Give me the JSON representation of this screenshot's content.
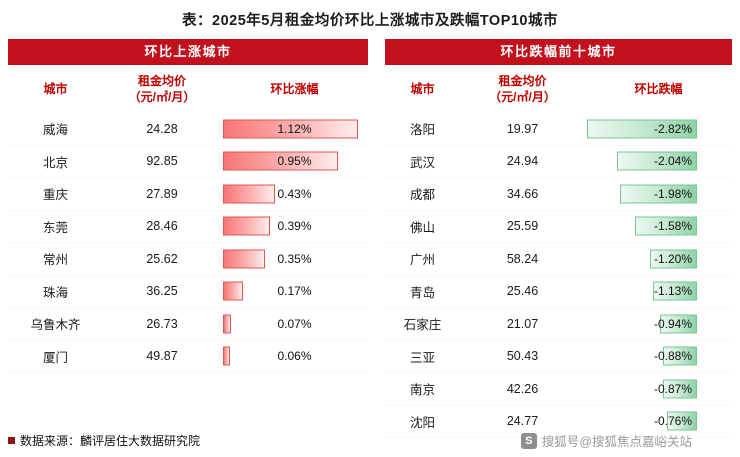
{
  "page": {
    "title": "表：2025年5月租金均价环比上涨城市及跌幅TOP10城市",
    "source_note": "数据来源：麟评居住大数据研究院",
    "watermark_text": "搜狐号@搜狐焦点嘉峪关站",
    "sohu_icon_glyph": "S"
  },
  "colors": {
    "band_red": "#C2101C",
    "header_text_red": "#C00000",
    "rise_bar_red": "#F87575",
    "rise_bar_border": "#E25555",
    "fall_bar_green": "#8FD2A6",
    "fall_bar_border": "#79C795"
  },
  "left_table": {
    "band_title": "环比上涨城市",
    "col_city": "城市",
    "col_price_line1": "租金均价",
    "col_price_line2": "（元/㎡/月）",
    "col_change": "环比涨幅"
  },
  "right_table": {
    "band_title": "环比跌幅前十城市",
    "col_city": "城市",
    "col_price_line1": "租金均价",
    "col_price_line2": "（元/㎡/月）",
    "col_change": "环比跌幅"
  },
  "chart_data": [
    {
      "type": "table",
      "title": "环比上涨城市",
      "columns": [
        "城市",
        "租金均价（元/㎡/月）",
        "环比涨幅"
      ],
      "bar_style": "red-gradient-left-anchored",
      "rows": [
        {
          "city": "威海",
          "price": 24.28,
          "change_label": "1.12%",
          "change_pct": 1.12
        },
        {
          "city": "北京",
          "price": 92.85,
          "change_label": "0.95%",
          "change_pct": 0.95
        },
        {
          "city": "重庆",
          "price": 27.89,
          "change_label": "0.43%",
          "change_pct": 0.43
        },
        {
          "city": "东莞",
          "price": 28.46,
          "change_label": "0.39%",
          "change_pct": 0.39
        },
        {
          "city": "常州",
          "price": 25.62,
          "change_label": "0.35%",
          "change_pct": 0.35
        },
        {
          "city": "珠海",
          "price": 36.25,
          "change_label": "0.17%",
          "change_pct": 0.17
        },
        {
          "city": "乌鲁木齐",
          "price": 26.73,
          "change_label": "0.07%",
          "change_pct": 0.07
        },
        {
          "city": "厦门",
          "price": 49.87,
          "change_label": "0.06%",
          "change_pct": 0.06
        }
      ]
    },
    {
      "type": "table",
      "title": "环比跌幅前十城市",
      "columns": [
        "城市",
        "租金均价（元/㎡/月）",
        "环比跌幅"
      ],
      "bar_style": "green-gradient-right-anchored",
      "rows": [
        {
          "city": "洛阳",
          "price": 19.97,
          "change_label": "-2.82%",
          "change_pct": -2.82
        },
        {
          "city": "武汉",
          "price": 24.94,
          "change_label": "-2.04%",
          "change_pct": -2.04
        },
        {
          "city": "成都",
          "price": 34.66,
          "change_label": "-1.98%",
          "change_pct": -1.98
        },
        {
          "city": "佛山",
          "price": 25.59,
          "change_label": "-1.58%",
          "change_pct": -1.58
        },
        {
          "city": "广州",
          "price": 58.24,
          "change_label": "-1.20%",
          "change_pct": -1.2
        },
        {
          "city": "青岛",
          "price": 25.46,
          "change_label": "-1.13%",
          "change_pct": -1.13
        },
        {
          "city": "石家庄",
          "price": 21.07,
          "change_label": "-0.94%",
          "change_pct": -0.94
        },
        {
          "city": "三亚",
          "price": 50.43,
          "change_label": "-0.88%",
          "change_pct": -0.88
        },
        {
          "city": "南京",
          "price": 42.26,
          "change_label": "-0.87%",
          "change_pct": -0.87
        },
        {
          "city": "沈阳",
          "price": 24.77,
          "change_label": "-0.76%",
          "change_pct": -0.76
        }
      ]
    }
  ]
}
